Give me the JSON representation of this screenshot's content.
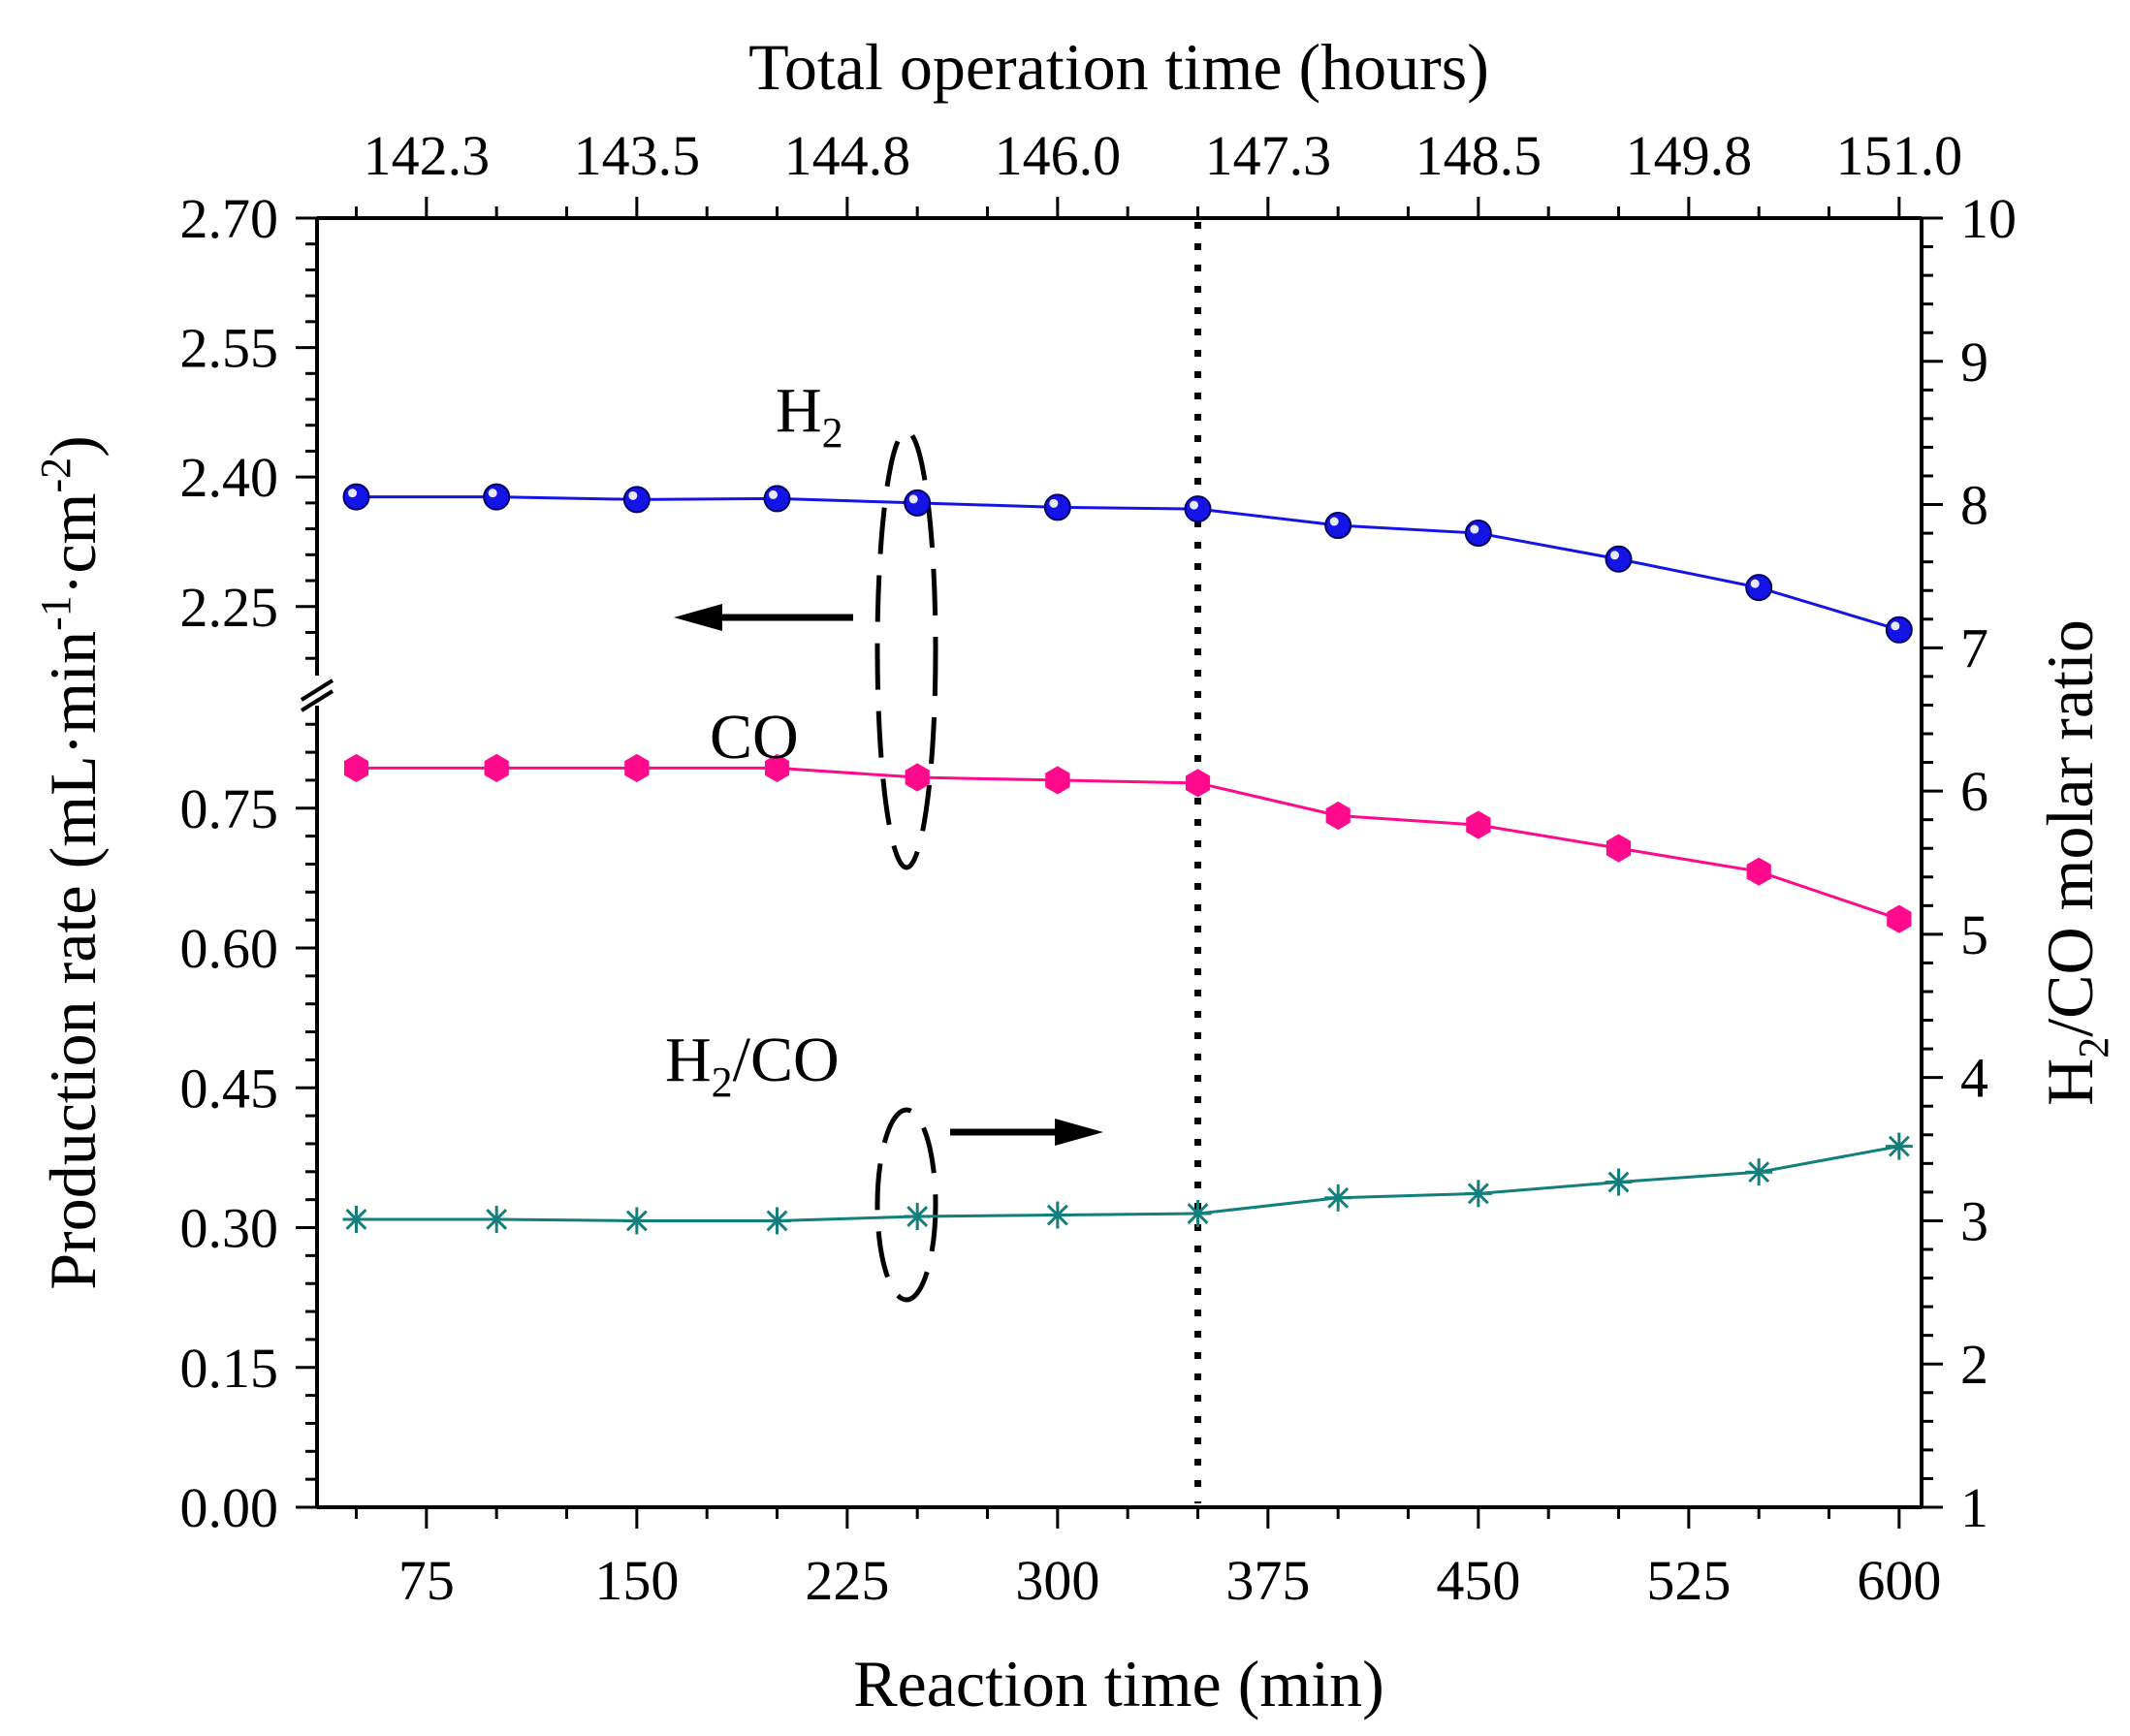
{
  "chart_data": {
    "type": "line",
    "x": [
      50,
      100,
      150,
      200,
      250,
      300,
      350,
      400,
      450,
      500,
      550,
      600
    ],
    "xlabel": "Reaction time (min)",
    "xlim": [
      36,
      608
    ],
    "x_ticks": [
      75,
      150,
      225,
      300,
      375,
      450,
      525,
      600
    ],
    "x_tick_labels": [
      "75",
      "150",
      "225",
      "300",
      "375",
      "450",
      "525",
      "600"
    ],
    "top_axis": {
      "label": "Total operation time (hours)",
      "tick_labels": [
        "142.3",
        "143.5",
        "144.8",
        "146.0",
        "147.3",
        "148.5",
        "149.8",
        "151.0"
      ]
    },
    "ylabel_left": {
      "parts": [
        "Production rate (mL·min",
        "-1",
        "·cm",
        "-2",
        ")"
      ]
    },
    "ylabel_right": {
      "parts": [
        "H",
        "2",
        "/CO molar ratio"
      ]
    },
    "y_left_lower": {
      "range": [
        0,
        0.86
      ],
      "ticks": [
        0.0,
        0.15,
        0.3,
        0.45,
        0.6,
        0.75
      ],
      "tick_labels": [
        "0.00",
        "0.15",
        "0.30",
        "0.45",
        "0.60",
        "0.75"
      ]
    },
    "y_left_upper": {
      "range": [
        2.17,
        2.7
      ],
      "ticks": [
        2.25,
        2.4,
        2.55,
        2.7
      ],
      "tick_labels": [
        "2.25",
        "2.40",
        "2.55",
        "2.70"
      ]
    },
    "y_right": {
      "range": [
        1,
        10
      ],
      "ticks": [
        1,
        2,
        3,
        4,
        5,
        6,
        7,
        8,
        9,
        10
      ],
      "tick_labels": [
        "1",
        "2",
        "3",
        "4",
        "5",
        "6",
        "7",
        "8",
        "9",
        "10"
      ]
    },
    "series": [
      {
        "name": "H2",
        "axis": "left-upper",
        "color": "#1414e6",
        "marker": "sphere",
        "values": [
          2.377,
          2.377,
          2.374,
          2.375,
          2.37,
          2.365,
          2.363,
          2.344,
          2.335,
          2.305,
          2.272,
          2.223
        ]
      },
      {
        "name": "CO",
        "axis": "left-lower",
        "color": "#ff0a8c",
        "marker": "hexagon",
        "values": [
          0.793,
          0.793,
          0.793,
          0.793,
          0.783,
          0.78,
          0.777,
          0.742,
          0.732,
          0.707,
          0.682,
          0.631
        ]
      },
      {
        "name": "H2/CO",
        "axis": "right",
        "color": "#137f7d",
        "marker": "asterisk",
        "values": [
          3.01,
          3.01,
          3.0,
          3.0,
          3.03,
          3.04,
          3.05,
          3.16,
          3.19,
          3.27,
          3.34,
          3.52
        ]
      }
    ],
    "annotations": {
      "h2_label": [
        "H",
        "2"
      ],
      "co_label": "CO",
      "ratio_label": [
        "H",
        "2",
        "/CO"
      ],
      "vertical_line_x": 350,
      "left_arrow": "points to left axis",
      "right_arrow": "points to right axis"
    },
    "grid": false,
    "legend": "none"
  }
}
